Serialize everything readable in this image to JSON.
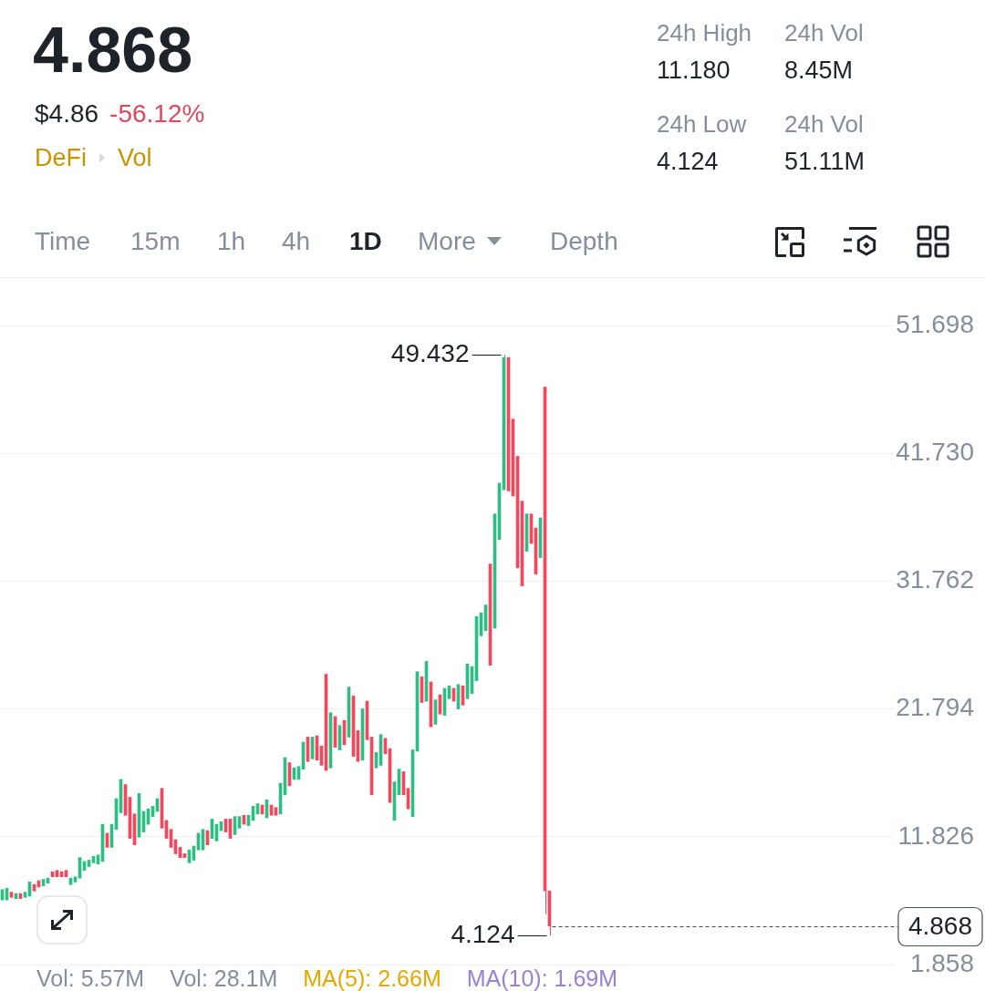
{
  "chart_data": {
    "type": "candlestick",
    "title": "4.868",
    "subtitle": "$4.86",
    "categories": [
      null,
      null,
      null,
      null,
      null,
      null,
      null,
      null,
      null,
      null,
      null,
      null,
      null,
      null,
      null,
      null,
      null,
      null,
      null,
      null,
      null,
      null,
      null,
      null,
      null,
      null,
      null,
      null,
      null,
      null,
      null,
      null,
      null,
      null,
      null,
      null,
      null,
      null,
      null,
      null,
      null,
      null,
      null,
      null,
      null,
      null,
      null,
      null,
      null,
      null,
      null,
      null,
      null,
      null,
      null,
      null,
      null,
      null,
      null,
      null,
      null,
      null,
      null,
      null,
      null,
      null,
      null,
      null,
      null,
      null,
      null,
      null,
      null,
      null,
      null,
      null,
      null,
      null,
      null,
      null,
      null,
      null,
      null,
      null,
      null,
      null,
      null,
      null,
      null,
      null,
      null,
      null,
      null,
      null,
      null,
      null,
      null,
      null,
      null,
      null,
      null,
      null,
      null,
      null,
      null,
      null,
      null,
      null,
      null,
      null,
      null,
      null,
      null,
      null,
      null,
      null,
      null,
      null,
      null,
      null,
      null,
      null,
      null,
      null,
      null,
      null,
      null,
      null,
      null,
      null,
      null,
      null,
      null,
      null,
      null,
      null,
      null,
      null,
      null,
      null,
      null,
      null,
      null,
      null,
      null,
      null,
      null,
      null,
      null,
      null,
      null,
      null,
      null,
      null,
      null,
      null,
      null,
      null,
      null,
      null,
      null,
      null,
      null,
      null,
      null,
      null,
      null,
      null,
      null,
      null,
      null,
      null,
      null,
      null,
      null,
      null,
      null,
      null,
      null,
      null,
      null,
      null,
      null,
      null,
      null,
      null,
      null,
      null,
      null,
      null,
      null,
      null,
      null,
      null,
      null,
      null
    ],
    "ohlc": [
      [
        6.9,
        7.7,
        6.9,
        7.7
      ],
      [
        6.9,
        7.8,
        6.9,
        7.8
      ],
      [
        7.5,
        7.5,
        7.1,
        7.1
      ],
      [
        7.0,
        7.4,
        7.0,
        7.4
      ],
      [
        7.4,
        7.4,
        7.0,
        7.0
      ],
      [
        7.1,
        7.5,
        7.1,
        7.5
      ],
      [
        7.2,
        8.3,
        7.2,
        8.3
      ],
      [
        8.1,
        8.1,
        7.6,
        7.6
      ],
      [
        8.4,
        8.4,
        7.9,
        7.9
      ],
      [
        8.0,
        8.5,
        8.0,
        8.5
      ],
      [
        8.2,
        8.6,
        8.2,
        8.6
      ],
      [
        9.1,
        9.1,
        8.7,
        8.7
      ],
      [
        9.2,
        9.2,
        8.7,
        8.7
      ],
      [
        9.1,
        9.1,
        8.7,
        8.7
      ],
      [
        9.2,
        9.2,
        8.7,
        8.7
      ],
      [
        8.1,
        8.6,
        8.1,
        8.6
      ],
      [
        8.3,
        8.7,
        8.3,
        8.7
      ],
      [
        8.6,
        10.2,
        8.6,
        10.2
      ],
      [
        9.2,
        9.9,
        9.2,
        9.9
      ],
      [
        9.5,
        10.0,
        9.5,
        10.0
      ],
      [
        9.8,
        10.3,
        9.8,
        10.3
      ],
      [
        9.7,
        10.4,
        9.7,
        10.4
      ],
      [
        9.9,
        12.8,
        9.9,
        12.8
      ],
      [
        12.1,
        12.1,
        11.0,
        11.0
      ],
      [
        11.0,
        12.8,
        11.0,
        12.8
      ],
      [
        12.4,
        14.8,
        12.4,
        14.8
      ],
      [
        13.7,
        16.3,
        13.7,
        16.3
      ],
      [
        15.9,
        15.9,
        13.5,
        13.5
      ],
      [
        14.9,
        14.9,
        11.7,
        11.7
      ],
      [
        13.6,
        13.6,
        11.2,
        11.2
      ],
      [
        11.8,
        15.2,
        11.8,
        15.2
      ],
      [
        12.2,
        13.8,
        12.2,
        13.8
      ],
      [
        12.8,
        14.0,
        12.8,
        14.0
      ],
      [
        13.4,
        14.2,
        13.4,
        14.2
      ],
      [
        13.8,
        14.8,
        13.8,
        14.8
      ],
      [
        15.6,
        15.6,
        12.5,
        12.5
      ],
      [
        13.1,
        13.1,
        11.7,
        11.7
      ],
      [
        12.4,
        12.4,
        11.0,
        11.0
      ],
      [
        11.6,
        11.6,
        10.5,
        10.5
      ],
      [
        11.0,
        11.0,
        10.2,
        10.2
      ],
      [
        10.5,
        10.5,
        10.2,
        10.2
      ],
      [
        9.8,
        10.8,
        9.8,
        10.8
      ],
      [
        10.0,
        11.1,
        10.0,
        11.1
      ],
      [
        10.8,
        12.1,
        10.8,
        12.1
      ],
      [
        10.8,
        12.4,
        10.8,
        12.4
      ],
      [
        12.3,
        12.3,
        11.2,
        11.2
      ],
      [
        11.7,
        13.2,
        11.7,
        13.2
      ],
      [
        11.5,
        12.8,
        11.5,
        12.8
      ],
      [
        12.3,
        13.0,
        12.3,
        13.0
      ],
      [
        13.2,
        13.2,
        12.2,
        12.2
      ],
      [
        13.2,
        13.2,
        11.7,
        11.7
      ],
      [
        12.0,
        13.4,
        12.0,
        13.4
      ],
      [
        12.5,
        13.4,
        12.5,
        13.4
      ],
      [
        13.5,
        13.5,
        12.8,
        12.8
      ],
      [
        12.7,
        13.5,
        12.7,
        13.5
      ],
      [
        13.1,
        14.2,
        13.1,
        14.2
      ],
      [
        13.6,
        14.4,
        13.6,
        14.4
      ],
      [
        14.3,
        14.3,
        13.6,
        13.6
      ],
      [
        13.3,
        14.7,
        13.3,
        14.7
      ],
      [
        14.3,
        14.3,
        13.5,
        13.5
      ],
      [
        14.1,
        14.1,
        13.5,
        13.5
      ],
      [
        13.6,
        16.0,
        13.6,
        16.0
      ],
      [
        15.1,
        18.0,
        15.1,
        18.0
      ],
      [
        17.6,
        17.6,
        15.8,
        15.8
      ],
      [
        16.3,
        17.2,
        16.3,
        17.2
      ],
      [
        16.3,
        17.3,
        16.3,
        17.3
      ],
      [
        17.1,
        19.2,
        17.1,
        19.2
      ],
      [
        19.6,
        19.6,
        17.7,
        17.7
      ],
      [
        17.9,
        19.6,
        17.9,
        19.6
      ],
      [
        19.7,
        19.7,
        17.8,
        17.8
      ],
      [
        18.9,
        18.9,
        17.4,
        17.4
      ],
      [
        24.5,
        24.5,
        17.0,
        17.0
      ],
      [
        17.2,
        21.5,
        17.2,
        21.5
      ],
      [
        21.2,
        21.2,
        18.8,
        18.8
      ],
      [
        18.6,
        20.5,
        18.6,
        20.5
      ],
      [
        20.9,
        20.9,
        19.0,
        19.0
      ],
      [
        19.6,
        23.5,
        19.6,
        23.5
      ],
      [
        22.8,
        22.8,
        18.1,
        18.1
      ],
      [
        20.1,
        20.1,
        17.7,
        17.7
      ],
      [
        17.8,
        21.8,
        17.8,
        21.8
      ],
      [
        22.4,
        22.4,
        19.4,
        19.4
      ],
      [
        19.6,
        19.6,
        15.1,
        15.1
      ],
      [
        17.2,
        18.4,
        17.2,
        18.4
      ],
      [
        17.4,
        19.8,
        17.4,
        19.8
      ],
      [
        19.5,
        19.5,
        18.3,
        18.3
      ],
      [
        18.7,
        18.7,
        14.5,
        14.5
      ],
      [
        13.1,
        16.1,
        13.1,
        16.1
      ],
      [
        15.1,
        17.1,
        15.1,
        17.1
      ],
      [
        16.9,
        16.9,
        15.1,
        15.1
      ],
      [
        15.6,
        15.6,
        14.0,
        14.0
      ],
      [
        13.4,
        18.6,
        13.4,
        18.6
      ],
      [
        18.5,
        24.7,
        18.5,
        24.7
      ],
      [
        24.3,
        24.3,
        22.3,
        22.3
      ],
      [
        22.4,
        25.5,
        22.4,
        25.5
      ],
      [
        23.9,
        23.9,
        20.4,
        20.4
      ],
      [
        20.6,
        22.5,
        20.6,
        22.5
      ],
      [
        22.9,
        22.9,
        21.4,
        21.4
      ],
      [
        21.3,
        23.4,
        21.3,
        23.4
      ],
      [
        22.6,
        23.6,
        22.6,
        23.6
      ],
      [
        23.4,
        23.4,
        22.4,
        22.4
      ],
      [
        21.8,
        23.7,
        21.8,
        23.7
      ],
      [
        23.6,
        23.6,
        22.1,
        22.1
      ],
      [
        22.6,
        25.3,
        22.6,
        25.3
      ],
      [
        23.0,
        25.1,
        23.0,
        25.1
      ],
      [
        24.0,
        29.0,
        24.0,
        29.0
      ],
      [
        27.5,
        29.3,
        27.5,
        29.3
      ],
      [
        27.9,
        29.9,
        27.9,
        29.9
      ],
      [
        33.1,
        33.1,
        25.2,
        25.2
      ],
      [
        28.1,
        37.0,
        28.1,
        37.0
      ],
      [
        35.0,
        39.4,
        35.0,
        39.4
      ],
      [
        38.9,
        49.432,
        38.9,
        49.2
      ],
      [
        49.2,
        49.2,
        38.8,
        38.8
      ],
      [
        44.4,
        44.4,
        38.4,
        38.4
      ],
      [
        41.5,
        41.5,
        32.8,
        32.8
      ],
      [
        38.0,
        38.0,
        31.4,
        31.4
      ],
      [
        34.1,
        37.0,
        34.1,
        37.0
      ],
      [
        37.0,
        37.0,
        34.7,
        34.7
      ],
      [
        35.9,
        35.9,
        32.3,
        32.3
      ],
      [
        33.6,
        36.7,
        33.6,
        36.7
      ],
      [
        46.9,
        46.9,
        5.8,
        7.6
      ],
      [
        7.6,
        7.6,
        4.124,
        4.868
      ],
      null,
      null,
      null,
      null,
      null,
      null,
      null,
      null,
      null,
      null,
      null,
      null,
      null,
      null,
      null,
      null,
      null,
      null,
      null,
      null,
      null,
      null,
      null,
      null,
      null,
      null,
      null,
      null,
      null,
      null,
      null,
      null,
      null,
      null,
      null,
      null,
      null,
      null,
      null,
      null,
      null,
      null,
      null,
      null,
      null,
      null,
      null,
      null,
      null,
      null,
      null,
      null,
      null,
      null,
      null,
      null,
      null,
      null,
      null,
      null,
      null,
      null,
      null,
      null,
      null,
      null,
      null,
      null,
      null,
      null,
      null,
      null,
      null,
      null,
      null
    ],
    "colors": [
      "#2ebd85",
      "#2ebd85",
      "#f6465d",
      "#2ebd85",
      "#f6465d",
      "#2ebd85",
      "#2ebd85",
      "#f6465d",
      "#f6465d",
      "#2ebd85",
      "#2ebd85",
      "#f6465d",
      "#f6465d",
      "#f6465d",
      "#f6465d",
      "#2ebd85",
      "#2ebd85",
      "#2ebd85",
      "#2ebd85",
      "#2ebd85",
      "#2ebd85",
      "#2ebd85",
      "#2ebd85",
      "#f6465d",
      "#2ebd85",
      "#2ebd85",
      "#2ebd85",
      "#f6465d",
      "#f6465d",
      "#f6465d",
      "#2ebd85",
      "#2ebd85",
      "#2ebd85",
      "#2ebd85",
      "#2ebd85",
      "#f6465d",
      "#f6465d",
      "#f6465d",
      "#f6465d",
      "#f6465d",
      "#f6465d",
      "#2ebd85",
      "#2ebd85",
      "#2ebd85",
      "#2ebd85",
      "#f6465d",
      "#2ebd85",
      "#2ebd85",
      "#2ebd85",
      "#f6465d",
      "#f6465d",
      "#2ebd85",
      "#2ebd85",
      "#f6465d",
      "#2ebd85",
      "#2ebd85",
      "#2ebd85",
      "#f6465d",
      "#2ebd85",
      "#f6465d",
      "#f6465d",
      "#2ebd85",
      "#2ebd85",
      "#f6465d",
      "#2ebd85",
      "#2ebd85",
      "#2ebd85",
      "#f6465d",
      "#2ebd85",
      "#f6465d",
      "#f6465d",
      "#f6465d",
      "#2ebd85",
      "#f6465d",
      "#2ebd85",
      "#f6465d",
      "#2ebd85",
      "#f6465d",
      "#f6465d",
      "#2ebd85",
      "#f6465d",
      "#f6465d",
      "#2ebd85",
      "#2ebd85",
      "#f6465d",
      "#f6465d",
      "#2ebd85",
      "#2ebd85",
      "#f6465d",
      "#f6465d",
      "#2ebd85",
      "#2ebd85",
      "#f6465d",
      "#2ebd85",
      "#f6465d",
      "#2ebd85",
      "#f6465d",
      "#2ebd85",
      "#2ebd85",
      "#f6465d",
      "#2ebd85",
      "#f6465d",
      "#2ebd85",
      "#2ebd85",
      "#2ebd85",
      "#2ebd85",
      "#2ebd85",
      "#f6465d",
      "#2ebd85",
      "#2ebd85",
      "#2ebd85",
      "#f6465d",
      "#f6465d",
      "#f6465d",
      "#f6465d",
      "#2ebd85",
      "#f6465d",
      "#f6465d",
      "#2ebd85",
      "#f6465d",
      "#f6465d",
      null,
      null,
      null,
      null,
      null,
      null,
      null,
      null,
      null,
      null,
      null,
      null,
      null,
      null,
      null,
      null,
      null,
      null,
      null,
      null,
      null,
      null,
      null,
      null,
      null,
      null,
      null,
      null,
      null,
      null,
      null,
      null,
      null,
      null,
      null,
      null,
      null,
      null,
      null,
      null,
      null,
      null,
      null,
      null,
      null,
      null,
      null,
      null,
      null,
      null,
      null,
      null,
      null,
      null,
      null,
      null,
      null,
      null,
      null,
      null,
      null,
      null,
      null,
      null,
      null,
      null,
      null,
      null,
      null,
      null,
      null,
      null,
      null,
      null,
      null
    ],
    "ylim": [
      1.858,
      55.4
    ],
    "yticks": [
      1.858,
      11.826,
      21.794,
      31.762,
      {
        "value": 41.73,
        "label": "41.730"
      },
      51.698
    ],
    "grid": "y",
    "tick_labels": "y",
    "ref_lines": [
      {
        "axis": "y",
        "value": 4.868,
        "label": "4.868",
        "line_style": "dashed",
        "color": "#474d57"
      }
    ],
    "annotations": [
      "-56.12%",
      "DeFi",
      "Vol",
      "24h High",
      "11.180",
      "24h Low",
      "4.124",
      "24h Vol",
      "8.45M",
      "24h Vol",
      "51.11M",
      "Time",
      "15m",
      "1h",
      "4h",
      "1D",
      "More",
      "Depth",
      "Vol: 5.57M",
      "Vol: 28.1M",
      "MA(5): 2.66M",
      "MA(10): 1.69M",
      "49.432",
      "4.124"
    ]
  }
}
